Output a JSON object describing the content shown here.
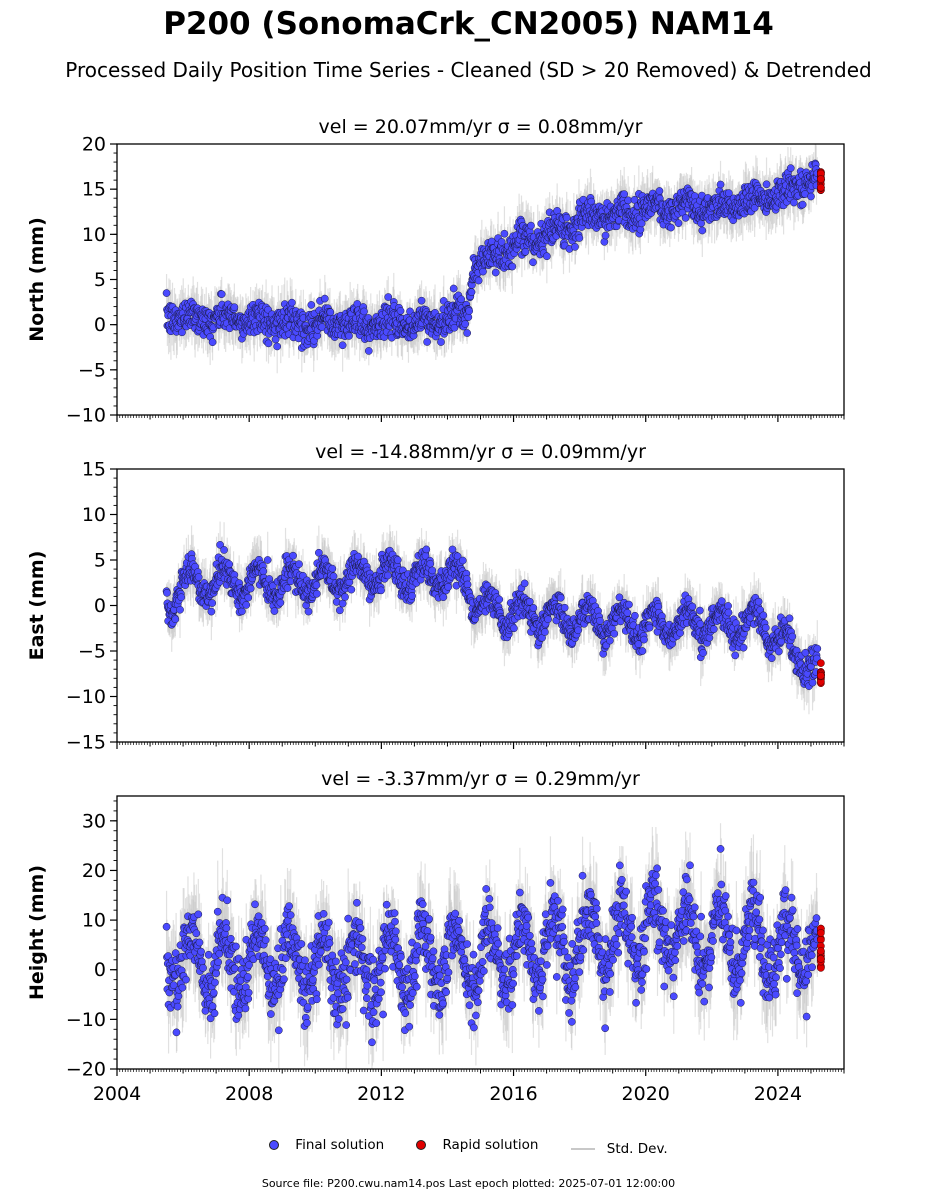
{
  "title": "P200 (SonomaCrk_CN2005) NAM14",
  "subtitle": "Processed Daily Position Time Series - Cleaned (SD > 20 Removed) & Detrended",
  "colors": {
    "final": "#4a4aff",
    "rapid": "#e00000",
    "stddev": "#c8c8c8",
    "edge": "#1a1a40"
  },
  "legend": {
    "final": "Final solution",
    "rapid": "Rapid solution",
    "stddev": "Std. Dev."
  },
  "footnote": "Source file: P200.cwu.nam14.pos  Last epoch plotted: 2025-07-01 12:00:00",
  "chart_data": [
    {
      "type": "scatter",
      "title": "vel = 20.07mm/yr   σ = 0.08mm/yr",
      "ylabel": "North (mm)",
      "xlim": [
        2004,
        2026
      ],
      "ylim": [
        -10,
        20
      ],
      "yticks": [
        -10,
        -5,
        0,
        5,
        10,
        15,
        20
      ],
      "final_start": 2005.5,
      "final_end": 2025.2,
      "rapid_start": 2025.2,
      "rapid_end": 2025.4,
      "trend": [
        [
          2005.5,
          1.0
        ],
        [
          2010.0,
          0.2
        ],
        [
          2013.0,
          0.0
        ],
        [
          2014.6,
          1.0
        ],
        [
          2014.8,
          6.5
        ],
        [
          2016.0,
          8.5
        ],
        [
          2018.0,
          11.5
        ],
        [
          2020.0,
          13.0
        ],
        [
          2022.0,
          13.0
        ],
        [
          2024.0,
          14.5
        ],
        [
          2025.2,
          16.0
        ],
        [
          2025.4,
          16.3
        ]
      ],
      "seasonal_amplitude": 0.6,
      "noise": 0.9,
      "stddev_range": 2.5
    },
    {
      "type": "scatter",
      "title": "vel = -14.88mm/yr   σ = 0.09mm/yr",
      "ylabel": "East (mm)",
      "xlim": [
        2004,
        2026
      ],
      "ylim": [
        -15,
        15
      ],
      "yticks": [
        -15,
        -10,
        -5,
        0,
        5,
        10,
        15
      ],
      "final_start": 2005.5,
      "final_end": 2025.2,
      "rapid_start": 2025.2,
      "rapid_end": 2025.4,
      "trend": [
        [
          2005.5,
          0.0
        ],
        [
          2006.0,
          2.5
        ],
        [
          2010.0,
          2.5
        ],
        [
          2012.0,
          3.5
        ],
        [
          2014.6,
          3.0
        ],
        [
          2014.8,
          0.0
        ],
        [
          2016.0,
          -1.0
        ],
        [
          2020.0,
          -2.0
        ],
        [
          2023.5,
          -2.0
        ],
        [
          2024.5,
          -5.0
        ],
        [
          2025.2,
          -7.5
        ],
        [
          2025.4,
          -7.8
        ]
      ],
      "seasonal_amplitude": 1.5,
      "noise": 0.8,
      "stddev_range": 2.5
    },
    {
      "type": "scatter",
      "title": "vel = -3.37mm/yr   σ = 0.29mm/yr",
      "ylabel": "Height (mm)",
      "xlim": [
        2004,
        2026
      ],
      "ylim": [
        -20,
        35
      ],
      "yticks": [
        -20,
        -10,
        0,
        10,
        20,
        30
      ],
      "xticks": [
        2004,
        2008,
        2012,
        2016,
        2020,
        2024
      ],
      "final_start": 2005.5,
      "final_end": 2025.2,
      "rapid_start": 2025.2,
      "rapid_end": 2025.4,
      "trend": [
        [
          2005.5,
          2.0
        ],
        [
          2012.0,
          1.0
        ],
        [
          2016.0,
          3.0
        ],
        [
          2020.0,
          8.0
        ],
        [
          2023.0,
          6.0
        ],
        [
          2025.2,
          4.0
        ],
        [
          2025.4,
          4.0
        ]
      ],
      "seasonal_amplitude": 6.0,
      "noise": 3.5,
      "stddev_range": 8.0
    }
  ]
}
